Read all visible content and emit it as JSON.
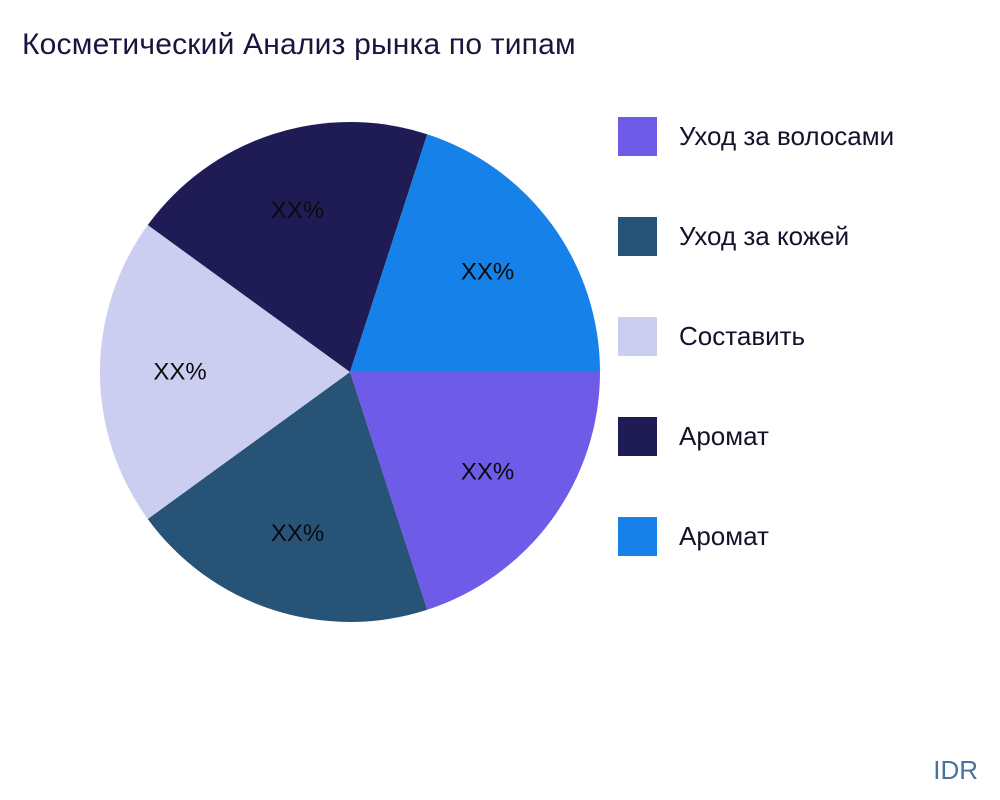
{
  "page": {
    "watermark": "IDR"
  },
  "chart_data": {
    "type": "pie",
    "title": "Косметический Анализ рынка по типам",
    "legend_position": "right",
    "start_angle_deg": 0,
    "direction": "clockwise",
    "grid": false,
    "slices": [
      {
        "label": "Уход за волосами",
        "value": 20,
        "display": "XX%",
        "color": "#6E5BE8"
      },
      {
        "label": "Уход за кожей",
        "value": 20,
        "display": "XX%",
        "color": "#275377"
      },
      {
        "label": "Составить",
        "value": 20,
        "display": "XX%",
        "color": "#CBCDF1"
      },
      {
        "label": "Аромат",
        "value": 20,
        "display": "XX%",
        "color": "#1F1B55"
      },
      {
        "label": "Аромат",
        "value": 20,
        "display": "XX%",
        "color": "#1681E8"
      }
    ],
    "colors": {
      "title": "#16163E",
      "slice_label_text": "#0B0B0B",
      "legend_text": "#12122B",
      "watermark": "#49719F",
      "background": "#FFFFFF"
    }
  }
}
